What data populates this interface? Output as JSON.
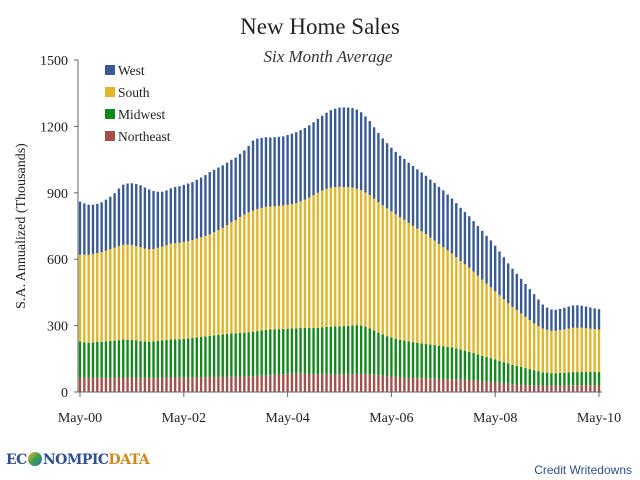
{
  "chart_data": {
    "type": "bar",
    "stacked": true,
    "title": "New Home Sales",
    "subtitle": "Six Month Average",
    "xlabel": "",
    "ylabel": "S.A. Annualized (Thousands)",
    "ylim": [
      0,
      1500
    ],
    "yticks": [
      0,
      300,
      600,
      900,
      1200,
      1500
    ],
    "xtick_labels": [
      "May-00",
      "May-02",
      "May-04",
      "May-06",
      "May-08",
      "May-10"
    ],
    "x_start": "May-00",
    "x_end": "May-10",
    "frequency": "monthly",
    "legend_position": "top-left",
    "grid": false,
    "series_order_bottom_to_top": [
      "Northeast",
      "Midwest",
      "South",
      "West"
    ],
    "legend": [
      {
        "name": "West",
        "color": "#3a5a94"
      },
      {
        "name": "South",
        "color": "#e0b52a"
      },
      {
        "name": "Midwest",
        "color": "#11881a"
      },
      {
        "name": "Northeast",
        "color": "#a3504a"
      }
    ],
    "series": [
      {
        "name": "Northeast",
        "color": "#a3504a",
        "values": [
          65,
          65,
          64,
          64,
          64,
          64,
          64,
          64,
          64,
          64,
          65,
          65,
          65,
          65,
          64,
          64,
          64,
          64,
          65,
          65,
          65,
          66,
          66,
          66,
          66,
          66,
          66,
          67,
          67,
          67,
          68,
          68,
          68,
          68,
          68,
          69,
          69,
          70,
          70,
          71,
          72,
          73,
          74,
          75,
          76,
          78,
          80,
          81,
          82,
          83,
          84,
          84,
          83,
          82,
          81,
          80,
          80,
          80,
          80,
          80,
          80,
          80,
          80,
          81,
          82,
          82,
          81,
          80,
          78,
          76,
          74,
          72,
          70,
          68,
          66,
          65,
          64,
          63,
          62,
          62,
          61,
          60,
          60,
          59,
          59,
          58,
          58,
          57,
          56,
          55,
          54,
          52,
          50,
          48,
          46,
          45,
          43,
          41,
          39,
          37,
          35,
          34,
          33,
          32,
          31,
          30,
          30,
          29,
          29,
          29,
          29,
          29,
          29,
          29,
          30,
          30,
          30,
          30,
          30,
          30,
          30
        ]
      },
      {
        "name": "Midwest",
        "color": "#11881a",
        "values": [
          163,
          160,
          158,
          160,
          162,
          163,
          165,
          167,
          168,
          170,
          172,
          171,
          170,
          168,
          166,
          164,
          163,
          164,
          166,
          168,
          170,
          172,
          172,
          172,
          174,
          176,
          178,
          180,
          182,
          184,
          186,
          188,
          190,
          192,
          194,
          196,
          196,
          197,
          198,
          199,
          200,
          202,
          204,
          206,
          206,
          205,
          204,
          204,
          204,
          204,
          204,
          205,
          206,
          207,
          208,
          210,
          212,
          214,
          215,
          216,
          217,
          218,
          219,
          220,
          220,
          218,
          214,
          208,
          200,
          192,
          186,
          180,
          176,
          173,
          170,
          167,
          164,
          162,
          160,
          158,
          156,
          154,
          152,
          150,
          148,
          146,
          144,
          140,
          136,
          132,
          128,
          124,
          120,
          116,
          112,
          108,
          104,
          100,
          96,
          92,
          88,
          84,
          80,
          76,
          72,
          68,
          64,
          60,
          58,
          56,
          56,
          57,
          58,
          59,
          60,
          60,
          60,
          60,
          60,
          60,
          60
        ]
      },
      {
        "name": "South",
        "color": "#e0b52a",
        "values": [
          392,
          395,
          398,
          400,
          402,
          405,
          410,
          415,
          420,
          425,
          428,
          430,
          428,
          426,
          424,
          420,
          418,
          418,
          420,
          424,
          428,
          432,
          434,
          436,
          438,
          440,
          442,
          446,
          450,
          454,
          458,
          466,
          474,
          482,
          492,
          502,
          512,
          524,
          534,
          542,
          548,
          552,
          554,
          556,
          556,
          556,
          557,
          558,
          560,
          562,
          566,
          572,
          580,
          590,
          600,
          610,
          618,
          624,
          628,
          630,
          630,
          628,
          626,
          622,
          616,
          612,
          606,
          602,
          596,
          590,
          584,
          578,
          570,
          562,
          554,
          546,
          536,
          526,
          516,
          506,
          496,
          484,
          472,
          460,
          448,
          436,
          424,
          412,
          400,
          390,
          380,
          368,
          356,
          344,
          332,
          320,
          308,
          296,
          284,
          272,
          262,
          252,
          242,
          232,
          222,
          212,
          204,
          198,
          194,
          192,
          192,
          194,
          196,
          198,
          200,
          200,
          200,
          198,
          196,
          194,
          192
        ]
      },
      {
        "name": "West",
        "color": "#3a5a94",
        "values": [
          240,
          232,
          226,
          222,
          222,
          225,
          230,
          236,
          246,
          260,
          272,
          276,
          280,
          281,
          280,
          276,
          270,
          262,
          254,
          248,
          248,
          250,
          254,
          256,
          258,
          260,
          262,
          266,
          270,
          275,
          282,
          282,
          282,
          282,
          282,
          282,
          282,
          285,
          290,
          300,
          316,
          318,
          316,
          314,
          312,
          312,
          312,
          312,
          315,
          318,
          320,
          322,
          324,
          326,
          330,
          334,
          338,
          344,
          350,
          354,
          358,
          360,
          360,
          360,
          358,
          352,
          344,
          334,
          322,
          312,
          302,
          294,
          288,
          282,
          278,
          275,
          272,
          270,
          268,
          266,
          264,
          262,
          260,
          258,
          256,
          252,
          248,
          244,
          240,
          236,
          232,
          228,
          224,
          220,
          216,
          212,
          206,
          198,
          190,
          180,
          172,
          164,
          156,
          148,
          140,
          132,
          120,
          108,
          100,
          96,
          94,
          96,
          98,
          100,
          101,
          102,
          100,
          98,
          96,
          94,
          92
        ]
      }
    ]
  },
  "footer": {
    "logo_text_a1": "EC",
    "logo_text_a2": "NOMPIC",
    "logo_text_b": "DATA",
    "credit": "Credit Writedowns"
  }
}
